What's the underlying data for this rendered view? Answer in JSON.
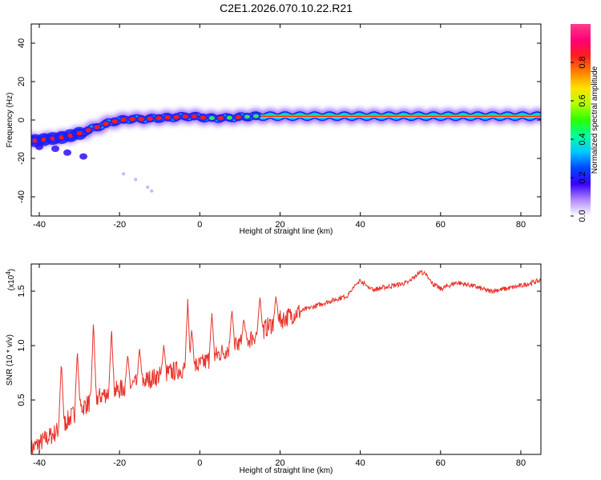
{
  "title": "C2E1.2026.070.10.22.R21",
  "colors": {
    "snr_line": "#e8332b",
    "spectrogram_background": "#ffffff",
    "ridge_core": "#ff1a1a"
  },
  "chart_data": [
    {
      "type": "heatmap",
      "name": "spectrogram",
      "xlabel": "Height of straight line (km)",
      "ylabel": "Frequency (Hz)",
      "xlim": [
        -42,
        85
      ],
      "ylim": [
        -50,
        50
      ],
      "xticks": [
        -40,
        -20,
        0,
        20,
        40,
        60,
        80
      ],
      "yticks": [
        -40,
        -20,
        0,
        20,
        40
      ],
      "colorbar": {
        "label": "Normalized spectral amplitude",
        "range": [
          0,
          1
        ],
        "ticks": [
          "0.0",
          "0.2",
          "0.4",
          "0.6",
          "0.8"
        ],
        "tick_values": [
          0.0,
          0.2,
          0.4,
          0.6,
          0.8
        ],
        "colors": [
          "#ffffff",
          "#b089ff",
          "#3a00ff",
          "#0046ff",
          "#00c8ff",
          "#00ffa0",
          "#2aff00",
          "#b4ff00",
          "#ffe100",
          "#ff8000",
          "#ff1e1e",
          "#ff0078",
          "#ff3c8c"
        ]
      },
      "ridge": {
        "x": [
          -42,
          -38,
          -34,
          -30,
          -26,
          -22,
          -18,
          -14,
          -10,
          -6,
          -2,
          2,
          6,
          10,
          14,
          20,
          30,
          40,
          50,
          60,
          70,
          80,
          85
        ],
        "frequency_hz": [
          -11,
          -10,
          -9,
          -7,
          -4,
          -1,
          0.5,
          0.5,
          1,
          1.5,
          2,
          1,
          1,
          1.5,
          2,
          2,
          2,
          2,
          2,
          2,
          2,
          2,
          2
        ]
      },
      "scatter_points": {
        "x": [
          -19,
          -16,
          -13,
          -12
        ],
        "frequency_hz": [
          -28,
          -31,
          -35,
          -37
        ]
      }
    },
    {
      "type": "line",
      "name": "snr",
      "xlabel": "Height of straight line (km)",
      "ylabel": "SNR (10 * v/v)",
      "multiplier_label": "(x10",
      "multiplier_exp": "4",
      "xlim": [
        -42,
        85
      ],
      "ylim": [
        0,
        1.75
      ],
      "xticks": [
        -40,
        -20,
        0,
        20,
        40,
        60,
        80
      ],
      "yticks": [
        0.5,
        1.0,
        1.5
      ],
      "ytick_labels": [
        "0.5",
        "1.0",
        "1.5"
      ],
      "trend": {
        "x": [
          -42,
          -36,
          -30,
          -24,
          -18,
          -12,
          -6,
          0,
          6,
          12,
          18,
          24,
          30,
          36,
          40,
          44,
          48,
          52,
          56,
          60,
          64,
          68,
          72,
          76,
          80,
          85
        ],
        "y": [
          0.05,
          0.2,
          0.42,
          0.55,
          0.62,
          0.7,
          0.77,
          0.82,
          0.95,
          1.05,
          1.2,
          1.3,
          1.38,
          1.45,
          1.5,
          1.52,
          1.55,
          1.58,
          1.62,
          1.52,
          1.58,
          1.55,
          1.5,
          1.52,
          1.55,
          1.6
        ]
      },
      "peaks": {
        "x": [
          -34.5,
          -30.5,
          -26.5,
          -22,
          -18,
          -15,
          -9,
          -3,
          -2,
          3,
          8,
          11,
          15,
          19,
          40,
          55
        ],
        "y": [
          0.85,
          0.95,
          1.22,
          1.15,
          0.92,
          0.98,
          1.0,
          1.42,
          1.15,
          1.3,
          1.33,
          1.25,
          1.45,
          1.45,
          1.6,
          1.68
        ]
      }
    }
  ]
}
